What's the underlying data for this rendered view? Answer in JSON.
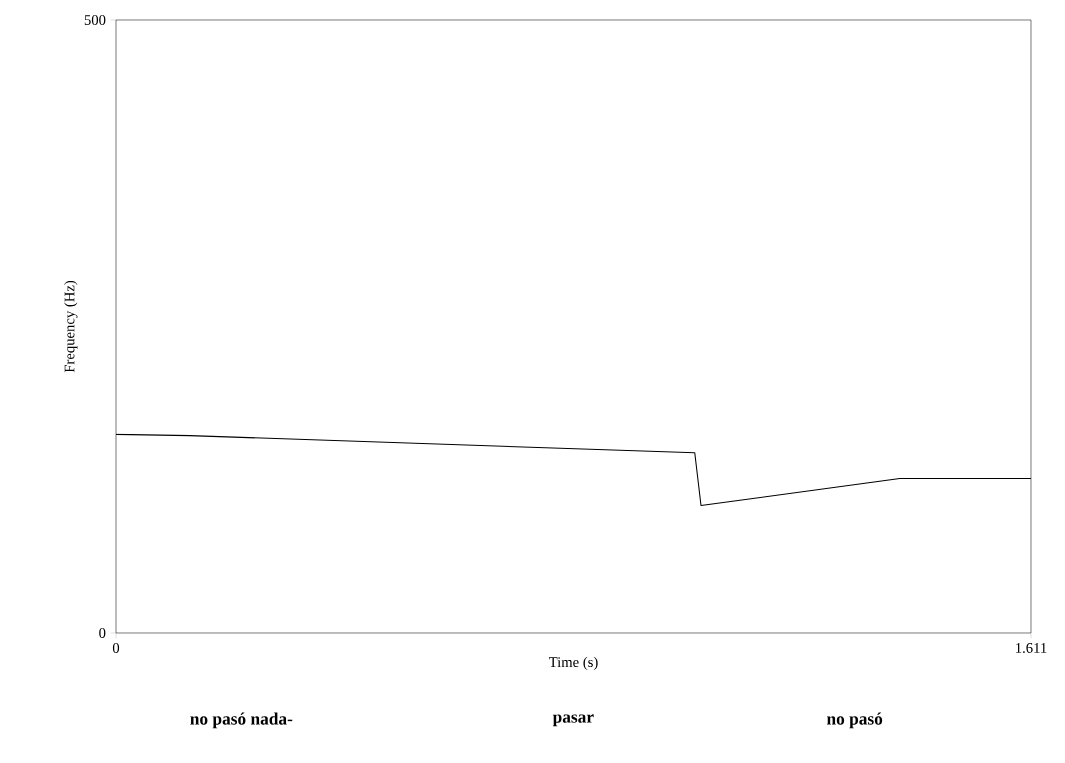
{
  "chart_data": {
    "type": "line",
    "xlabel": "Time (s)",
    "ylabel": "Frequency (Hz)",
    "x": [
      0,
      0.13,
      1.019,
      1.03,
      1.38,
      1.611
    ],
    "values": [
      162,
      161,
      147,
      104,
      126,
      126
    ],
    "color": "#000000",
    "xlim": [
      0,
      1.611
    ],
    "ylim": [
      0,
      500
    ],
    "xticks": [
      0,
      1.611
    ],
    "yticks": [
      0,
      500
    ],
    "marker": "none",
    "line_style": "solid",
    "annotations": [
      "no pasó nada-",
      "pasar",
      "no pasó"
    ]
  }
}
